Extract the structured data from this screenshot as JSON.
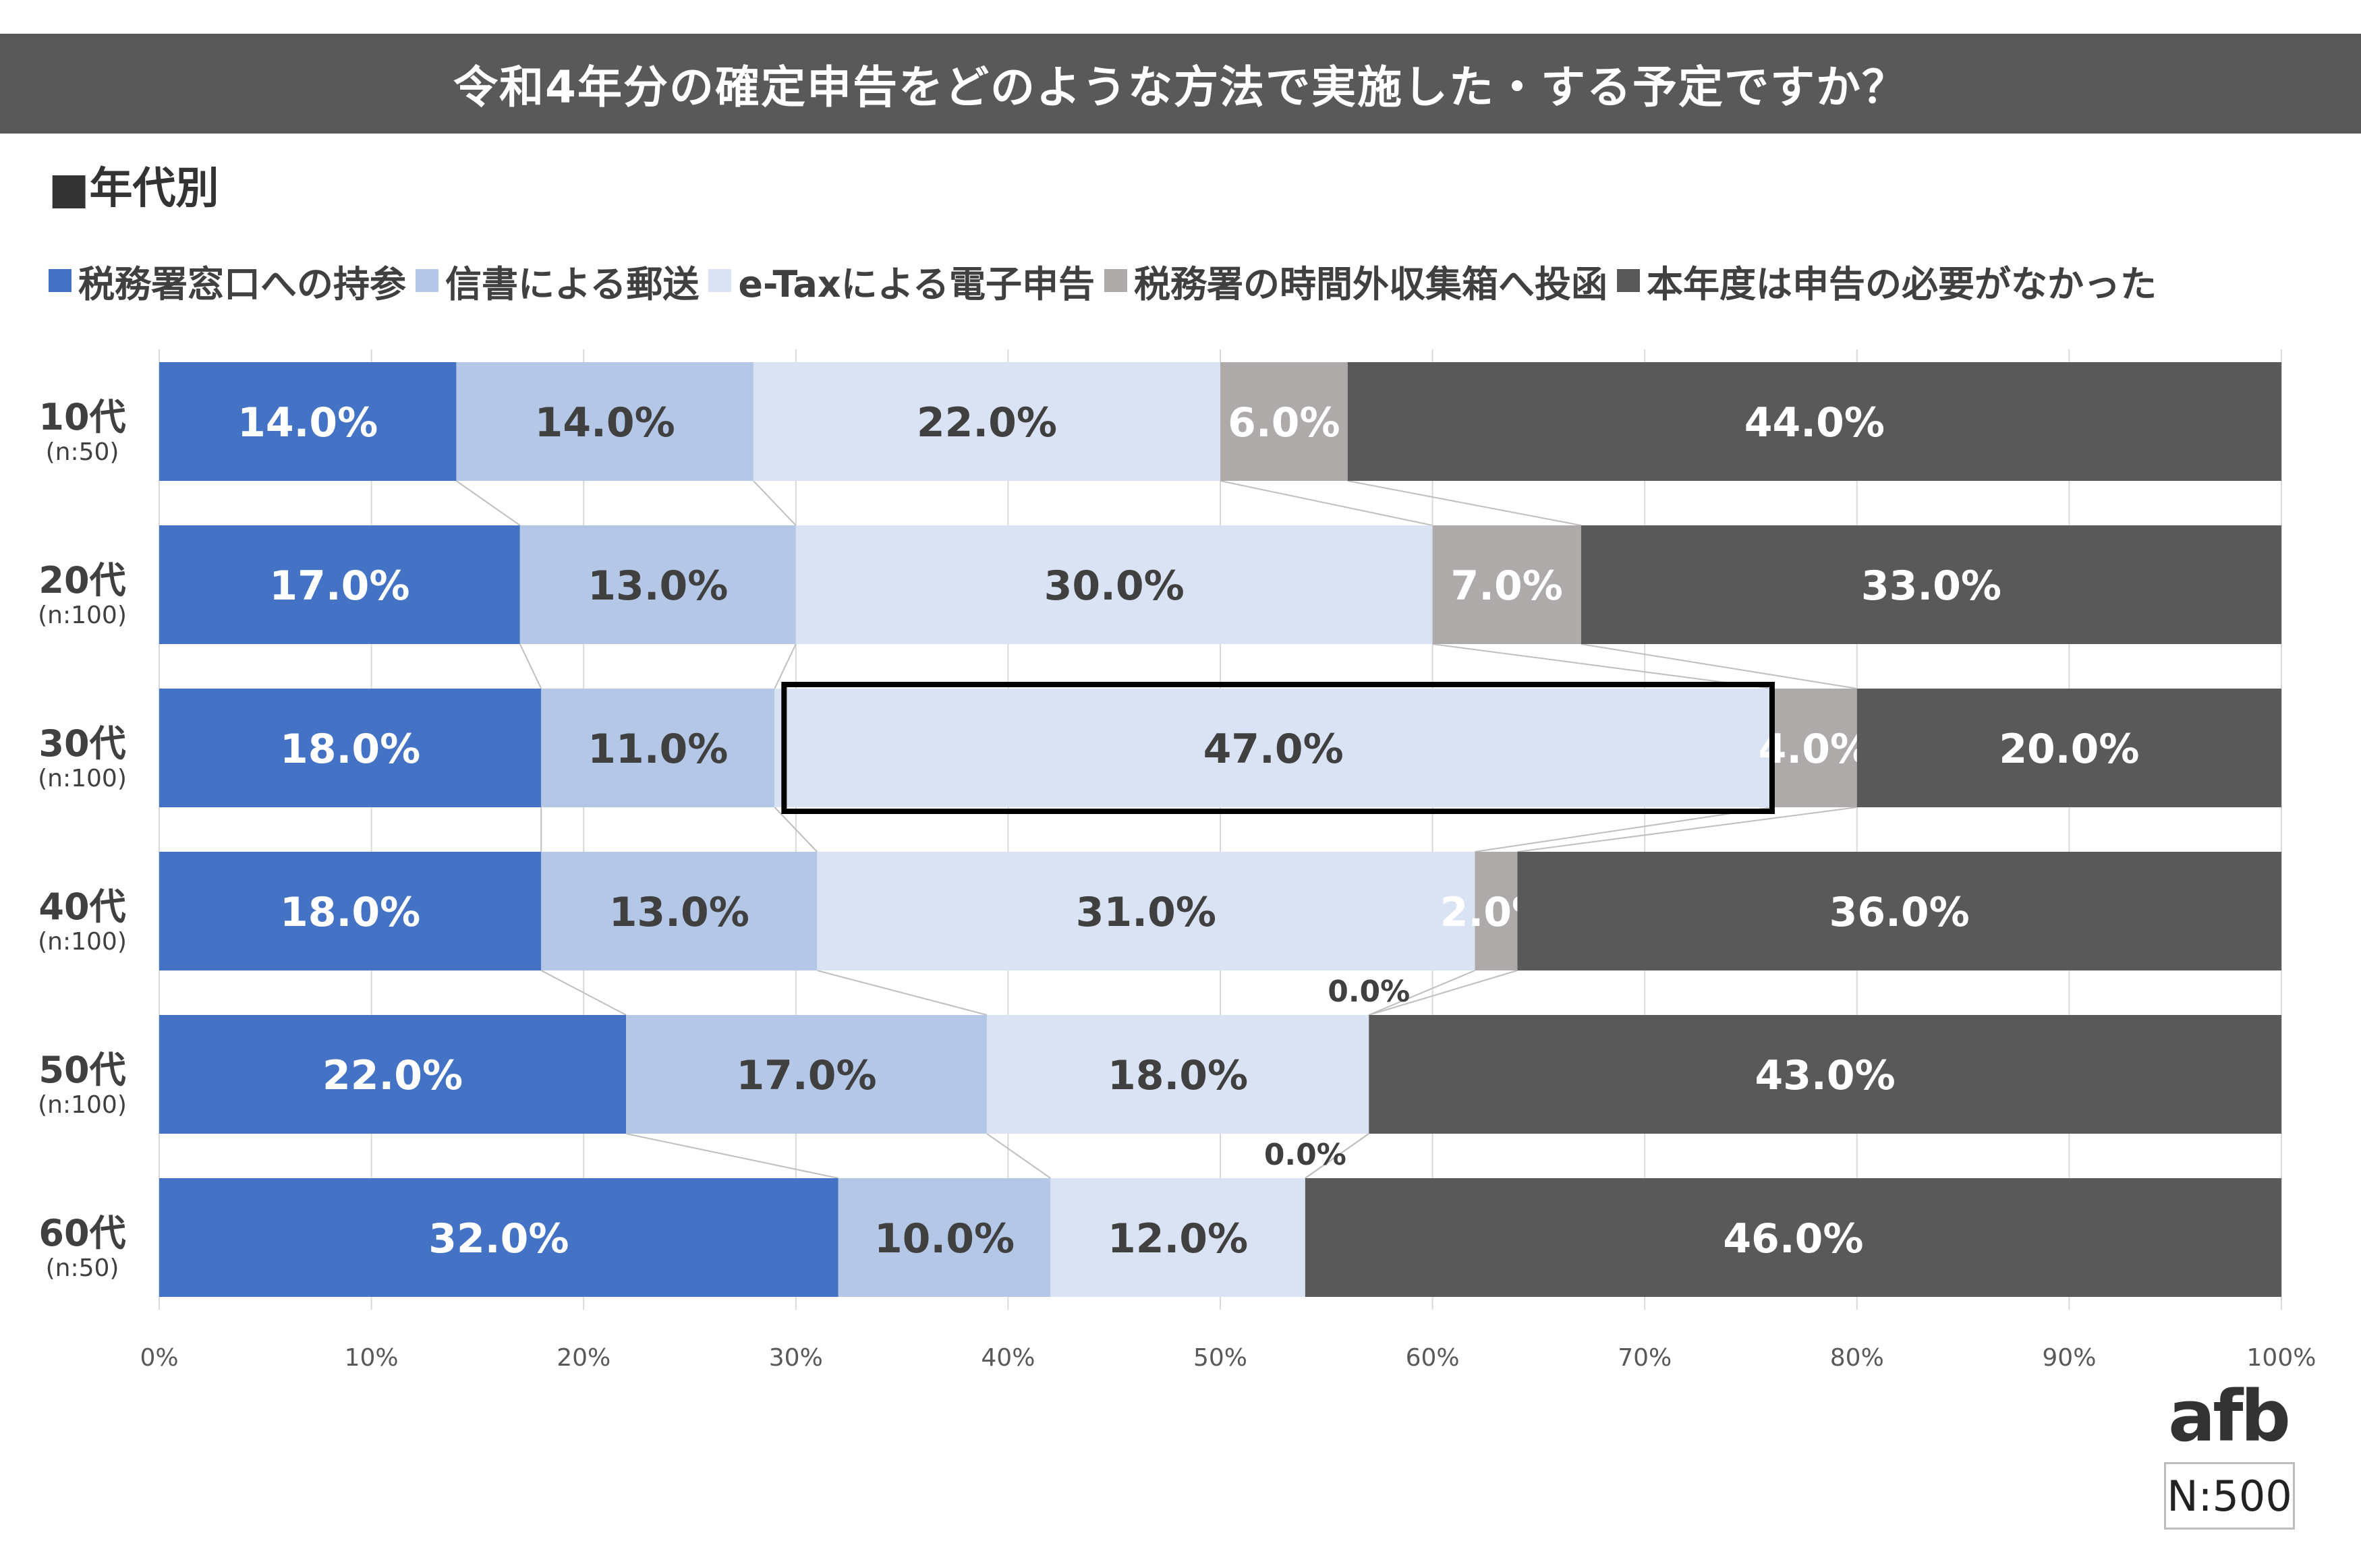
{
  "title": "令和4年分の確定申告をどのような方法で実施した・する予定ですか？",
  "subtitle": "■年代別",
  "total_n": "N:500",
  "logo_text": "afb",
  "colors": {
    "header_bg": "#595959",
    "series": [
      "#4472C4",
      "#B4C7E7",
      "#DAE3F3",
      "#AEAAAA",
      "#595959"
    ],
    "label_light": "#FFFFFF",
    "label_dark": "#404040",
    "highlight_border": "#000000"
  },
  "chart_data": {
    "type": "bar",
    "orientation": "horizontal",
    "stacked": true,
    "title": "令和4年分の確定申告をどのような方法で実施した・する予定ですか？",
    "categories": [
      "10代",
      "20代",
      "30代",
      "40代",
      "50代",
      "60代"
    ],
    "category_n": [
      "(n:50)",
      "(n:100)",
      "(n:100)",
      "(n:100)",
      "(n:100)",
      "(n:50)"
    ],
    "series": [
      {
        "name": "税務署窓口への持参",
        "values": [
          14.0,
          17.0,
          18.0,
          18.0,
          22.0,
          32.0
        ]
      },
      {
        "name": "信書による郵送",
        "values": [
          14.0,
          13.0,
          11.0,
          13.0,
          17.0,
          10.0
        ]
      },
      {
        "name": "e-Taxによる電子申告",
        "values": [
          22.0,
          30.0,
          47.0,
          31.0,
          18.0,
          12.0
        ]
      },
      {
        "name": "税務署の時間外収集箱へ投函",
        "values": [
          6.0,
          7.0,
          4.0,
          2.0,
          0.0,
          0.0
        ]
      },
      {
        "name": "本年度は申告の必要がなかった",
        "values": [
          44.0,
          33.0,
          20.0,
          36.0,
          43.0,
          46.0
        ]
      }
    ],
    "x_ticks": [
      "0%",
      "10%",
      "20%",
      "30%",
      "40%",
      "50%",
      "60%",
      "70%",
      "80%",
      "90%",
      "100%"
    ],
    "xlim": [
      0,
      100
    ],
    "grid": true,
    "legend_position": "top",
    "highlight": {
      "category": "30代",
      "series": "e-Taxによる電子申告"
    }
  }
}
